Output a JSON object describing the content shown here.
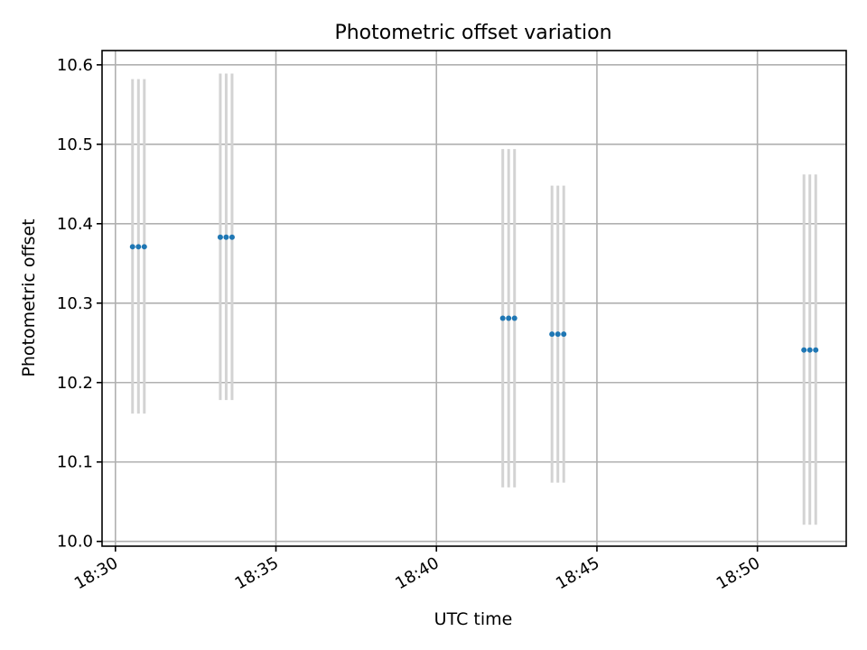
{
  "chart_data": {
    "type": "scatter",
    "title": "Photometric offset variation",
    "xlabel": "UTC time",
    "ylabel": "Photometric offset",
    "x_is_time": true,
    "xlim": [
      "18:29:35",
      "18:52:46"
    ],
    "ylim": [
      9.994,
      10.618
    ],
    "x_ticks": [
      "18:30",
      "18:35",
      "18:40",
      "18:45",
      "18:50"
    ],
    "y_ticks": [
      "10.0",
      "10.1",
      "10.2",
      "10.3",
      "10.4",
      "10.5",
      "10.6"
    ],
    "x_tick_label_rotation_deg": 30,
    "grid": true,
    "series": [
      {
        "marker_color": "#1f77b4",
        "errorbar_color": "#d3d3d3",
        "points": [
          {
            "x": "18:30:32",
            "y": 10.371,
            "err_low": 10.161,
            "err_high": 10.582
          },
          {
            "x": "18:30:43",
            "y": 10.371,
            "err_low": 10.161,
            "err_high": 10.582
          },
          {
            "x": "18:30:54",
            "y": 10.371,
            "err_low": 10.161,
            "err_high": 10.582
          },
          {
            "x": "18:33:16",
            "y": 10.383,
            "err_low": 10.178,
            "err_high": 10.589
          },
          {
            "x": "18:33:27",
            "y": 10.383,
            "err_low": 10.178,
            "err_high": 10.589
          },
          {
            "x": "18:33:38",
            "y": 10.383,
            "err_low": 10.178,
            "err_high": 10.589
          },
          {
            "x": "18:42:04",
            "y": 10.281,
            "err_low": 10.068,
            "err_high": 10.494
          },
          {
            "x": "18:42:15",
            "y": 10.281,
            "err_low": 10.068,
            "err_high": 10.494
          },
          {
            "x": "18:42:26",
            "y": 10.281,
            "err_low": 10.068,
            "err_high": 10.494
          },
          {
            "x": "18:43:36",
            "y": 10.261,
            "err_low": 10.074,
            "err_high": 10.448
          },
          {
            "x": "18:43:47",
            "y": 10.261,
            "err_low": 10.074,
            "err_high": 10.448
          },
          {
            "x": "18:43:58",
            "y": 10.261,
            "err_low": 10.074,
            "err_high": 10.448
          },
          {
            "x": "18:51:27",
            "y": 10.241,
            "err_low": 10.021,
            "err_high": 10.462
          },
          {
            "x": "18:51:38",
            "y": 10.241,
            "err_low": 10.021,
            "err_high": 10.462
          },
          {
            "x": "18:51:49",
            "y": 10.241,
            "err_low": 10.021,
            "err_high": 10.462
          }
        ]
      }
    ]
  }
}
